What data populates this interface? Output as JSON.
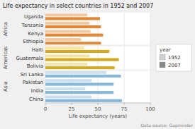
{
  "chart_data": {
    "type": "bar",
    "orientation": "horizontal",
    "title": "Life expectancy in select countries in 1952 and 2007",
    "x_label": "Life expectancy (years)",
    "annotations": [
      "Data source: Gapminder"
    ],
    "legend_title": "year",
    "categories": [
      "Uganda",
      "Tanzania",
      "Kenya",
      "Ethiopia",
      "Haiti",
      "Guatemala",
      "Bolivia",
      "Sri Lanka",
      "Pakistan",
      "India",
      "China"
    ],
    "groups": [
      "Africa",
      "Africa",
      "Africa",
      "Africa",
      "Americas",
      "Americas",
      "Americas",
      "Asia",
      "Asia",
      "Asia",
      "Asia"
    ],
    "group_labels": [
      "Africa",
      "Americas",
      "Asia"
    ],
    "series": [
      {
        "name": "1952",
        "color": "#d0d0d0",
        "values": [
          40,
          42,
          43,
          34,
          37,
          42,
          40,
          58,
          44,
          38,
          44
        ],
        "colors": [
          "#f5c9a0",
          "#f5c9a0",
          "#f5c9a0",
          "#f5c9a0",
          "#f5e4a8",
          "#f5e4a8",
          "#f5e4a8",
          "#cce0f0",
          "#cce0f0",
          "#cce0f0",
          "#cce0f0"
        ]
      },
      {
        "name": "2007",
        "color": "#888888",
        "values": [
          52,
          53,
          55,
          53,
          61,
          70,
          66,
          72,
          65,
          65,
          73
        ],
        "colors": [
          "#e08838",
          "#e08838",
          "#e08838",
          "#e08838",
          "#d4a820",
          "#d4a820",
          "#d4a820",
          "#88b8d8",
          "#88b8d8",
          "#88b8d8",
          "#88b8d8"
        ]
      }
    ],
    "xlim": [
      0,
      100
    ],
    "xticks": [
      0,
      25,
      50,
      75,
      100
    ],
    "grid": true,
    "legend": "right"
  }
}
